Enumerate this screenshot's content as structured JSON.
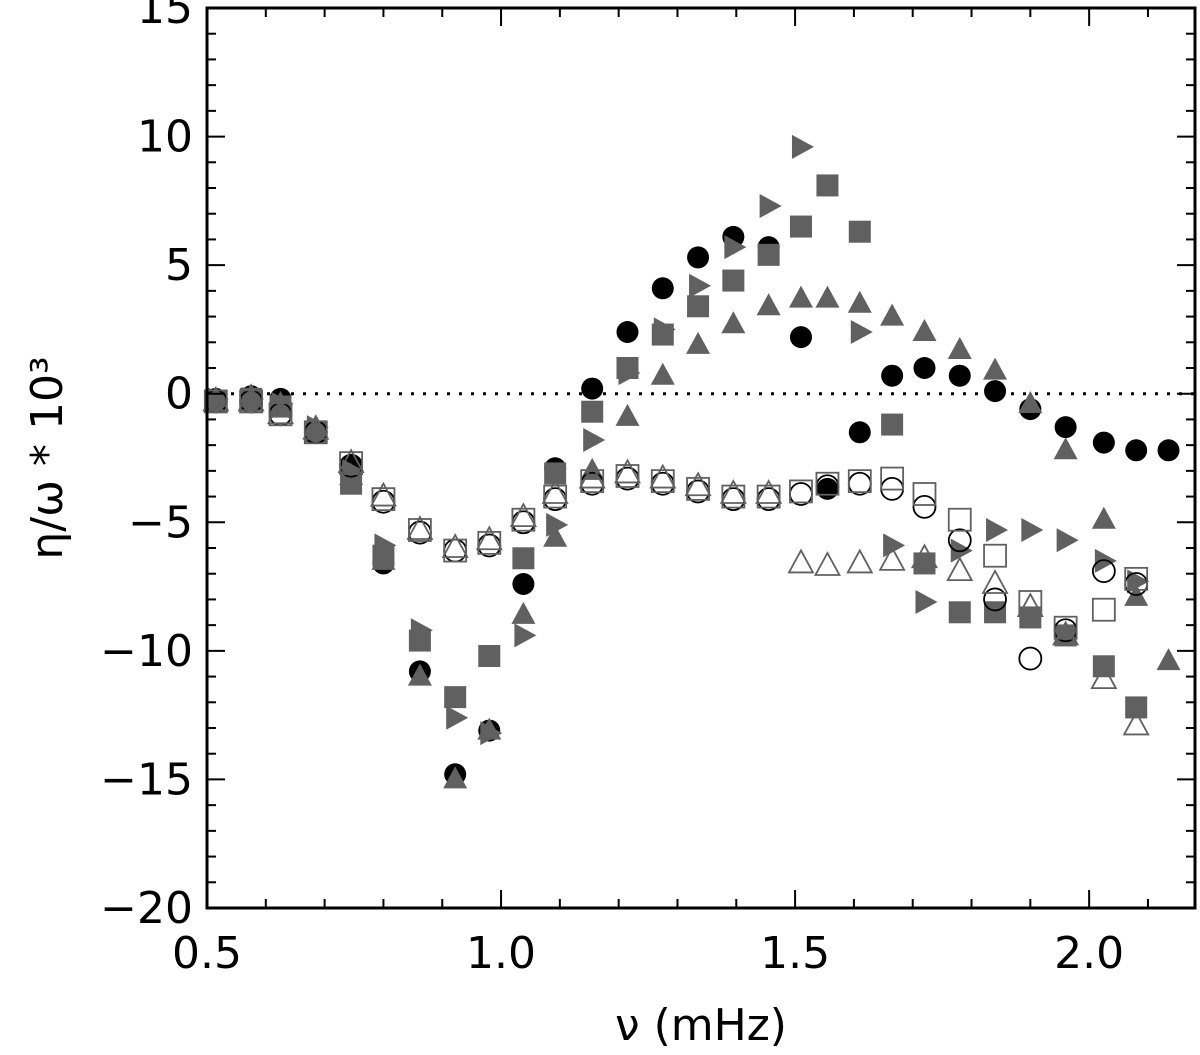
{
  "chart_data": {
    "type": "scatter",
    "title": "",
    "xlabel": "ν (mHz)",
    "ylabel": "η/ω * 10³",
    "xlim": [
      0.5,
      2.18
    ],
    "ylim": [
      -20,
      15
    ],
    "xticks": [
      {
        "value": 0.5,
        "label": "0.5"
      },
      {
        "value": 1.0,
        "label": "1.0"
      },
      {
        "value": 1.5,
        "label": "1.5"
      },
      {
        "value": 2.0,
        "label": "2.0"
      }
    ],
    "yticks": [
      {
        "value": 15,
        "label": "15"
      },
      {
        "value": 10,
        "label": "10"
      },
      {
        "value": 5,
        "label": "5"
      },
      {
        "value": 0,
        "label": "0"
      },
      {
        "value": -5,
        "label": "−5"
      },
      {
        "value": -10,
        "label": "−10"
      },
      {
        "value": -15,
        "label": "−15"
      },
      {
        "value": -20,
        "label": "−20"
      }
    ],
    "reference_line": {
      "y": 0,
      "style": "dotted"
    },
    "series": [
      {
        "marker": "filled-circle",
        "color": "#000000",
        "points": [
          [
            0.515,
            -0.2
          ],
          [
            0.575,
            -0.1
          ],
          [
            0.625,
            -0.2
          ],
          [
            0.685,
            -1.5
          ],
          [
            0.745,
            -2.8
          ],
          [
            0.8,
            -6.6
          ],
          [
            0.862,
            -10.8
          ],
          [
            0.922,
            -14.8
          ],
          [
            0.98,
            -13.1
          ],
          [
            1.038,
            -7.4
          ],
          [
            1.092,
            -2.9
          ],
          [
            1.155,
            0.2
          ],
          [
            1.215,
            2.4
          ],
          [
            1.275,
            4.1
          ],
          [
            1.335,
            5.3
          ],
          [
            1.395,
            6.1
          ],
          [
            1.455,
            5.7
          ],
          [
            1.51,
            2.2
          ],
          [
            1.555,
            -3.7
          ],
          [
            1.61,
            -1.5
          ],
          [
            1.665,
            0.7
          ],
          [
            1.72,
            1.0
          ],
          [
            1.78,
            0.7
          ],
          [
            1.84,
            0.1
          ],
          [
            1.9,
            -0.6
          ],
          [
            1.96,
            -1.3
          ],
          [
            2.025,
            -1.9
          ],
          [
            2.08,
            -2.2
          ],
          [
            2.135,
            -2.2
          ]
        ]
      },
      {
        "marker": "filled-square",
        "color": "#606060",
        "points": [
          [
            0.515,
            -0.3
          ],
          [
            0.575,
            -0.2
          ],
          [
            0.625,
            -0.5
          ],
          [
            0.685,
            -1.5
          ],
          [
            0.745,
            -3.5
          ],
          [
            0.8,
            -6.3
          ],
          [
            0.862,
            -9.6
          ],
          [
            0.922,
            -11.8
          ],
          [
            0.98,
            -10.2
          ],
          [
            1.038,
            -6.4
          ],
          [
            1.092,
            -3.1
          ],
          [
            1.155,
            -0.7
          ],
          [
            1.215,
            1.0
          ],
          [
            1.275,
            2.3
          ],
          [
            1.335,
            3.4
          ],
          [
            1.395,
            4.4
          ],
          [
            1.455,
            5.4
          ],
          [
            1.51,
            6.5
          ],
          [
            1.555,
            8.1
          ],
          [
            1.61,
            6.3
          ],
          [
            1.665,
            -1.2
          ],
          [
            1.72,
            -6.6
          ],
          [
            1.78,
            -8.5
          ],
          [
            1.84,
            -8.5
          ],
          [
            1.9,
            -8.7
          ],
          [
            1.96,
            -9.4
          ],
          [
            2.025,
            -10.6
          ],
          [
            2.08,
            -12.2
          ]
        ]
      },
      {
        "marker": "filled-triangle-up",
        "color": "#606060",
        "points": [
          [
            0.515,
            -0.2
          ],
          [
            0.575,
            -0.1
          ],
          [
            0.625,
            -0.4
          ],
          [
            0.685,
            -1.3
          ],
          [
            0.745,
            -3.2
          ],
          [
            0.8,
            -6.5
          ],
          [
            0.862,
            -11.0
          ],
          [
            0.922,
            -15.0
          ],
          [
            0.98,
            -13.1
          ],
          [
            1.038,
            -8.6
          ],
          [
            1.092,
            -5.6
          ],
          [
            1.155,
            -3.0
          ],
          [
            1.215,
            -0.9
          ],
          [
            1.275,
            0.7
          ],
          [
            1.335,
            1.9
          ],
          [
            1.395,
            2.7
          ],
          [
            1.455,
            3.4
          ],
          [
            1.51,
            3.7
          ],
          [
            1.555,
            3.7
          ],
          [
            1.61,
            3.5
          ],
          [
            1.665,
            3.0
          ],
          [
            1.72,
            2.4
          ],
          [
            1.78,
            1.7
          ],
          [
            1.84,
            0.9
          ],
          [
            1.9,
            -0.4
          ],
          [
            1.96,
            -2.2
          ],
          [
            2.025,
            -4.9
          ],
          [
            2.08,
            -7.9
          ],
          [
            2.135,
            -10.4
          ]
        ]
      },
      {
        "marker": "filled-triangle-right",
        "color": "#606060",
        "points": [
          [
            0.515,
            -0.2
          ],
          [
            0.575,
            -0.2
          ],
          [
            0.625,
            -0.4
          ],
          [
            0.685,
            -1.3
          ],
          [
            0.745,
            -3.0
          ],
          [
            0.8,
            -5.9
          ],
          [
            0.862,
            -9.2
          ],
          [
            0.922,
            -12.6
          ],
          [
            0.98,
            -13.2
          ],
          [
            1.038,
            -9.4
          ],
          [
            1.092,
            -5.1
          ],
          [
            1.155,
            -1.8
          ],
          [
            1.215,
            0.8
          ],
          [
            1.275,
            2.5
          ],
          [
            1.335,
            4.2
          ],
          [
            1.395,
            5.7
          ],
          [
            1.455,
            7.3
          ],
          [
            1.51,
            9.6
          ],
          [
            1.61,
            2.4
          ],
          [
            1.665,
            -5.9
          ],
          [
            1.72,
            -8.1
          ],
          [
            1.78,
            -6.1
          ],
          [
            1.84,
            -5.3
          ],
          [
            1.9,
            -5.3
          ],
          [
            1.96,
            -5.7
          ],
          [
            2.025,
            -6.5
          ],
          [
            2.08,
            -7.3
          ]
        ]
      },
      {
        "marker": "open-circle",
        "color": "#000000",
        "points": [
          [
            0.515,
            -0.3
          ],
          [
            0.575,
            -0.3
          ],
          [
            0.625,
            -0.8
          ],
          [
            0.685,
            -1.5
          ],
          [
            0.745,
            -2.8
          ],
          [
            0.8,
            -4.2
          ],
          [
            0.862,
            -5.4
          ],
          [
            0.922,
            -6.1
          ],
          [
            0.98,
            -5.9
          ],
          [
            1.038,
            -5.0
          ],
          [
            1.092,
            -4.1
          ],
          [
            1.155,
            -3.5
          ],
          [
            1.215,
            -3.3
          ],
          [
            1.275,
            -3.5
          ],
          [
            1.335,
            -3.8
          ],
          [
            1.395,
            -4.1
          ],
          [
            1.455,
            -4.1
          ],
          [
            1.51,
            -3.9
          ],
          [
            1.555,
            -3.6
          ],
          [
            1.61,
            -3.5
          ],
          [
            1.665,
            -3.7
          ],
          [
            1.72,
            -4.4
          ],
          [
            1.78,
            -5.7
          ],
          [
            1.84,
            -8.0
          ],
          [
            1.9,
            -10.3
          ],
          [
            1.96,
            -9.2
          ],
          [
            2.025,
            -6.9
          ],
          [
            2.08,
            -7.4
          ]
        ]
      },
      {
        "marker": "open-square",
        "color": "#606060",
        "points": [
          [
            0.515,
            -0.3
          ],
          [
            0.575,
            -0.3
          ],
          [
            0.625,
            -0.8
          ],
          [
            0.685,
            -1.5
          ],
          [
            0.745,
            -2.7
          ],
          [
            0.8,
            -4.1
          ],
          [
            0.862,
            -5.3
          ],
          [
            0.922,
            -6.1
          ],
          [
            0.98,
            -5.8
          ],
          [
            1.038,
            -4.9
          ],
          [
            1.092,
            -4.0
          ],
          [
            1.155,
            -3.4
          ],
          [
            1.215,
            -3.2
          ],
          [
            1.275,
            -3.4
          ],
          [
            1.335,
            -3.7
          ],
          [
            1.395,
            -4.0
          ],
          [
            1.455,
            -4.0
          ],
          [
            1.51,
            -3.8
          ],
          [
            1.555,
            -3.5
          ],
          [
            1.61,
            -3.4
          ],
          [
            1.665,
            -3.3
          ],
          [
            1.72,
            -3.9
          ],
          [
            1.78,
            -4.9
          ],
          [
            1.84,
            -6.3
          ],
          [
            1.9,
            -8.1
          ],
          [
            1.96,
            -9.1
          ],
          [
            2.025,
            -8.4
          ],
          [
            2.08,
            -7.2
          ]
        ]
      },
      {
        "marker": "open-triangle-up",
        "color": "#606060",
        "points": [
          [
            0.515,
            -0.3
          ],
          [
            0.575,
            -0.3
          ],
          [
            0.625,
            -0.8
          ],
          [
            0.685,
            -1.4
          ],
          [
            0.745,
            -2.7
          ],
          [
            0.8,
            -4.0
          ],
          [
            0.862,
            -5.3
          ],
          [
            0.922,
            -6.0
          ],
          [
            0.98,
            -5.7
          ],
          [
            1.038,
            -4.8
          ],
          [
            1.092,
            -3.9
          ],
          [
            1.155,
            -3.3
          ],
          [
            1.215,
            -3.1
          ],
          [
            1.275,
            -3.3
          ],
          [
            1.335,
            -3.6
          ],
          [
            1.395,
            -3.9
          ],
          [
            1.455,
            -3.9
          ],
          [
            1.51,
            -6.6
          ],
          [
            1.555,
            -6.7
          ],
          [
            1.61,
            -6.6
          ],
          [
            1.665,
            -6.5
          ],
          [
            1.72,
            -6.4
          ],
          [
            1.78,
            -6.9
          ],
          [
            1.84,
            -7.4
          ],
          [
            1.9,
            -8.3
          ],
          [
            1.96,
            -9.4
          ],
          [
            2.025,
            -11.1
          ],
          [
            2.08,
            -12.9
          ]
        ]
      }
    ]
  }
}
